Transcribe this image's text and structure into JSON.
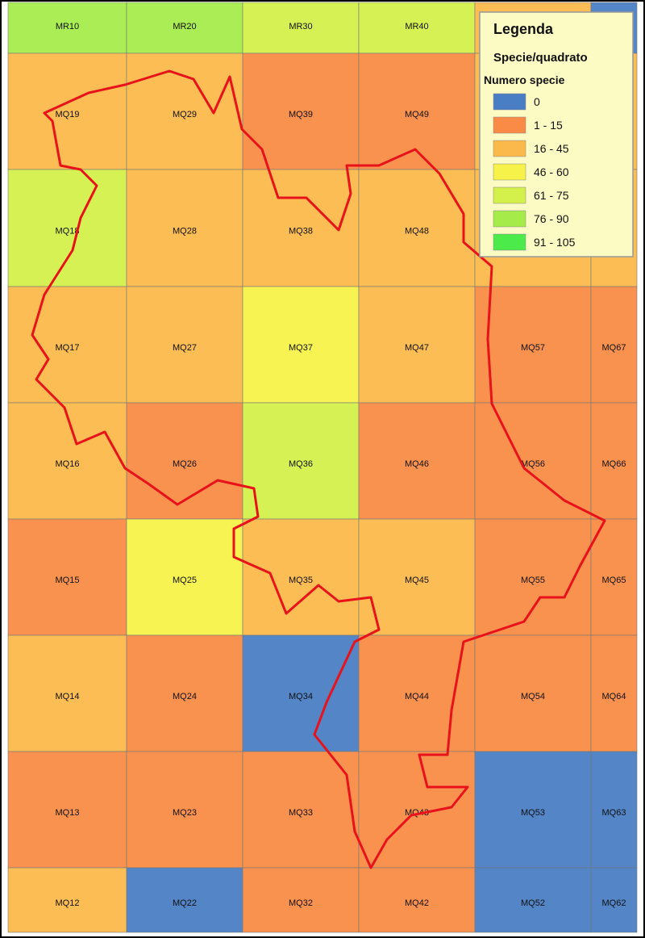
{
  "legend": {
    "title": "Legenda",
    "subtitle": "Specie/quadrato",
    "heading": "Numero specie",
    "items": [
      {
        "label": "0",
        "color": "#4a7ec4"
      },
      {
        "label": "1 - 15",
        "color": "#f98b46"
      },
      {
        "label": "16 - 45",
        "color": "#fbb94b"
      },
      {
        "label": "46 - 60",
        "color": "#f6f24a"
      },
      {
        "label": "61 - 75",
        "color": "#d3f04b"
      },
      {
        "label": "76 - 90",
        "color": "#a5ec4b"
      },
      {
        "label": "91 - 105",
        "color": "#4dea4c"
      }
    ]
  },
  "grid": {
    "rows": [
      [
        {
          "label": "MR10",
          "color": "#a5ec4b"
        },
        {
          "label": "MR20",
          "color": "#a5ec4b"
        },
        {
          "label": "MR30",
          "color": "#d3f04b"
        },
        {
          "label": "MR40",
          "color": "#d3f04b"
        },
        {
          "label": null,
          "color": "#fbb94b"
        },
        {
          "label": null,
          "color": "#4a7ec4"
        }
      ],
      [
        {
          "label": "MQ19",
          "color": "#fbb94b"
        },
        {
          "label": "MQ29",
          "color": "#fbb94b"
        },
        {
          "label": "MQ39",
          "color": "#f98b46"
        },
        {
          "label": "MQ49",
          "color": "#f98b46"
        },
        {
          "label": null,
          "color": "#fbb94b"
        },
        {
          "label": null,
          "color": "#fbb94b"
        }
      ],
      [
        {
          "label": "MQ18",
          "color": "#d3f04b"
        },
        {
          "label": "MQ28",
          "color": "#fbb94b"
        },
        {
          "label": "MQ38",
          "color": "#fbb94b"
        },
        {
          "label": "MQ48",
          "color": "#fbb94b"
        },
        {
          "label": null,
          "color": "#fbb94b"
        },
        {
          "label": null,
          "color": "#fbb94b"
        }
      ],
      [
        {
          "label": "MQ17",
          "color": "#fbb94b"
        },
        {
          "label": "MQ27",
          "color": "#fbb94b"
        },
        {
          "label": "MQ37",
          "color": "#f6f24a"
        },
        {
          "label": "MQ47",
          "color": "#fbb94b"
        },
        {
          "label": "MQ57",
          "color": "#f98b46"
        },
        {
          "label": "MQ67",
          "color": "#f98b46"
        }
      ],
      [
        {
          "label": "MQ16",
          "color": "#fbb94b"
        },
        {
          "label": "MQ26",
          "color": "#f98b46"
        },
        {
          "label": "MQ36",
          "color": "#d3f04b"
        },
        {
          "label": "MQ46",
          "color": "#f98b46"
        },
        {
          "label": "MQ56",
          "color": "#f98b46"
        },
        {
          "label": "MQ66",
          "color": "#f98b46"
        }
      ],
      [
        {
          "label": "MQ15",
          "color": "#f98b46"
        },
        {
          "label": "MQ25",
          "color": "#f6f24a"
        },
        {
          "label": "MQ35",
          "color": "#fbb94b"
        },
        {
          "label": "MQ45",
          "color": "#fbb94b"
        },
        {
          "label": "MQ55",
          "color": "#f98b46"
        },
        {
          "label": "MQ65",
          "color": "#f98b46"
        }
      ],
      [
        {
          "label": "MQ14",
          "color": "#fbb94b"
        },
        {
          "label": "MQ24",
          "color": "#f98b46"
        },
        {
          "label": "MQ34",
          "color": "#4a7ec4"
        },
        {
          "label": "MQ44",
          "color": "#f98b46"
        },
        {
          "label": "MQ54",
          "color": "#f98b46"
        },
        {
          "label": "MQ64",
          "color": "#f98b46"
        }
      ],
      [
        {
          "label": "MQ13",
          "color": "#f98b46"
        },
        {
          "label": "MQ23",
          "color": "#f98b46"
        },
        {
          "label": "MQ33",
          "color": "#f98b46"
        },
        {
          "label": "MQ43",
          "color": "#f98b46"
        },
        {
          "label": "MQ53",
          "color": "#4a7ec4"
        },
        {
          "label": "MQ63",
          "color": "#4a7ec4"
        }
      ],
      [
        {
          "label": "MQ12",
          "color": "#fbb94b"
        },
        {
          "label": "MQ22",
          "color": "#4a7ec4"
        },
        {
          "label": "MQ32",
          "color": "#f98b46"
        },
        {
          "label": "MQ42",
          "color": "#f98b46"
        },
        {
          "label": "MQ52",
          "color": "#4a7ec4"
        },
        {
          "label": "MQ62",
          "color": "#4a7ec4"
        }
      ]
    ]
  }
}
